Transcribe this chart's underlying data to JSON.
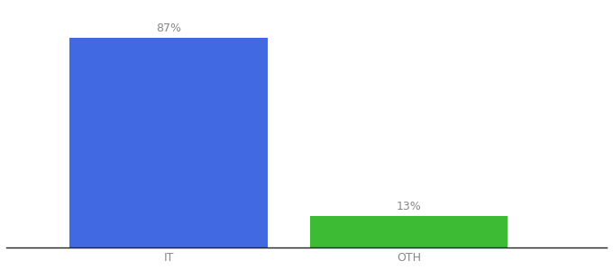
{
  "categories": [
    "IT",
    "OTH"
  ],
  "values": [
    87,
    13
  ],
  "bar_colors": [
    "#4169e1",
    "#3dbb35"
  ],
  "labels": [
    "87%",
    "13%"
  ],
  "ylim": [
    0,
    100
  ],
  "background_color": "#ffffff",
  "bar_width": 0.28,
  "label_fontsize": 9,
  "tick_fontsize": 9,
  "x_positions": [
    0.28,
    0.62
  ]
}
